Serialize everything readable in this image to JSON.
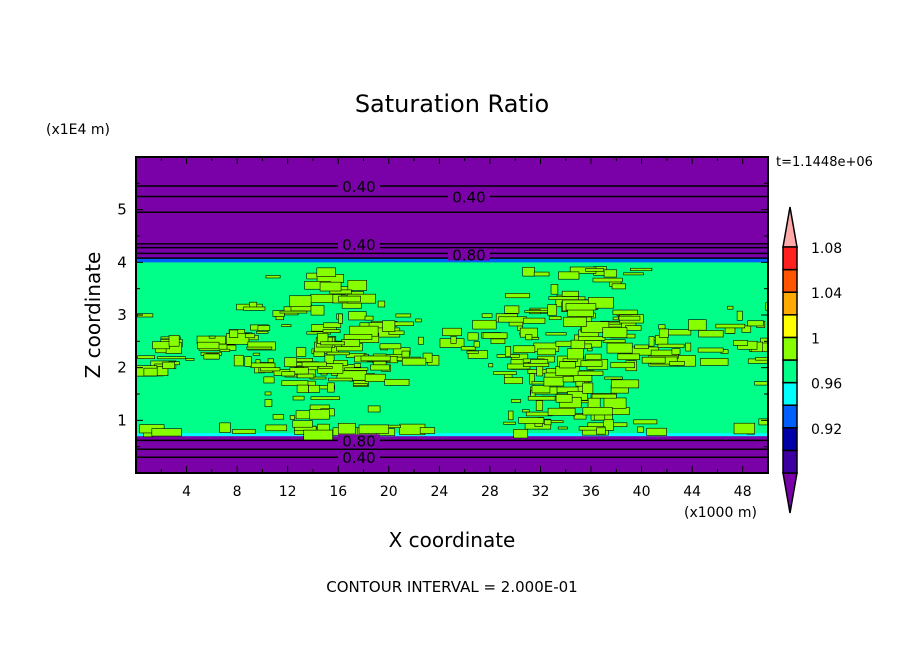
{
  "chart_data": {
    "type": "heatmap",
    "title": "Saturation Ratio",
    "xlabel": "X coordinate",
    "ylabel": "Z coordinate",
    "x_unit": "(x1000 m)",
    "y_unit": "(x1E4 m)",
    "xlim": [
      0,
      50
    ],
    "ylim": [
      0,
      6
    ],
    "x_ticks": [
      "4",
      "8",
      "12",
      "16",
      "20",
      "24",
      "28",
      "32",
      "36",
      "40",
      "44",
      "48"
    ],
    "y_ticks": [
      "1",
      "2",
      "3",
      "4",
      "5"
    ],
    "time_label": "t=1.1448e+06",
    "footer": "CONTOUR INTERVAL = 2.000E-01",
    "contour_labels": [
      "0.40",
      "0.40",
      "0.40",
      "0.80",
      "0.80",
      "0.40"
    ],
    "colorbar": {
      "labels": [
        "0.92",
        "0.96",
        "1",
        "1.04",
        "1.08"
      ],
      "label_values": [
        0.92,
        0.96,
        1.0,
        1.04,
        1.08
      ],
      "colors": [
        "#7a00a8",
        "#3c00a0",
        "#0000a8",
        "#0060ff",
        "#00ffff",
        "#00ff88",
        "#88ff00",
        "#ffff00",
        "#ffaa00",
        "#ff5500",
        "#ff2020",
        "#ffaaaa"
      ]
    },
    "regions": [
      {
        "z_range": [
          4.0,
          6.0
        ],
        "value": "<0.90"
      },
      {
        "z_range": [
          0.7,
          4.0
        ],
        "value": "0.98-1.02 (mixed)"
      },
      {
        "z_range": [
          0,
          0.7
        ],
        "value": "<0.90"
      }
    ]
  }
}
